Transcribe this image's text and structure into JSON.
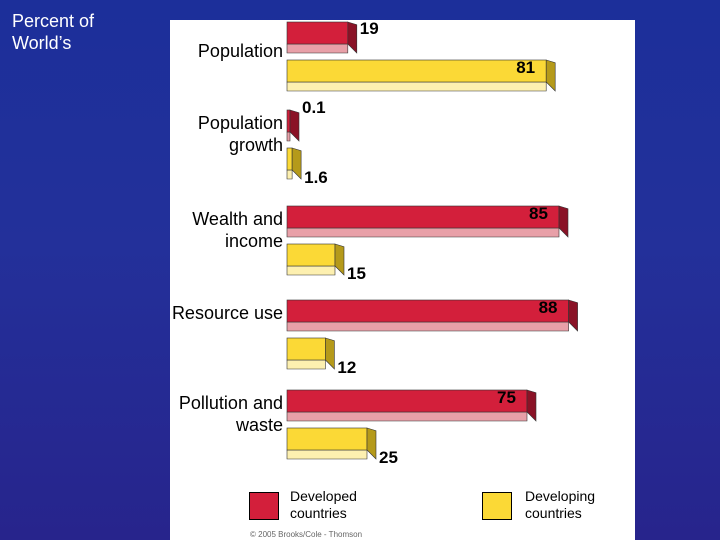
{
  "title": "Percent of World’s",
  "colors": {
    "developed": "#d31f3b",
    "developing": "#fbd936"
  },
  "chart_data": {
    "type": "bar",
    "orientation": "horizontal",
    "categories": [
      "Population",
      "Population growth",
      "Wealth and income",
      "Resource use",
      "Pollution and waste"
    ],
    "series": [
      {
        "name": "Developed countries",
        "values": [
          19,
          0.1,
          85,
          88,
          75
        ]
      },
      {
        "name": "Developing countries",
        "values": [
          81,
          1.6,
          15,
          12,
          25
        ]
      }
    ],
    "value_labels": [
      [
        "19",
        "0.1",
        "85",
        "88",
        "75"
      ],
      [
        "81",
        "1.6",
        "15",
        "12",
        "25"
      ]
    ],
    "xlim": [
      0,
      100
    ],
    "grid": false,
    "legend": "bottom"
  },
  "legend": {
    "developed": "Developed countries",
    "developing": "Developing countries"
  },
  "credit": "© 2005 Brooks/Cole - Thomson"
}
